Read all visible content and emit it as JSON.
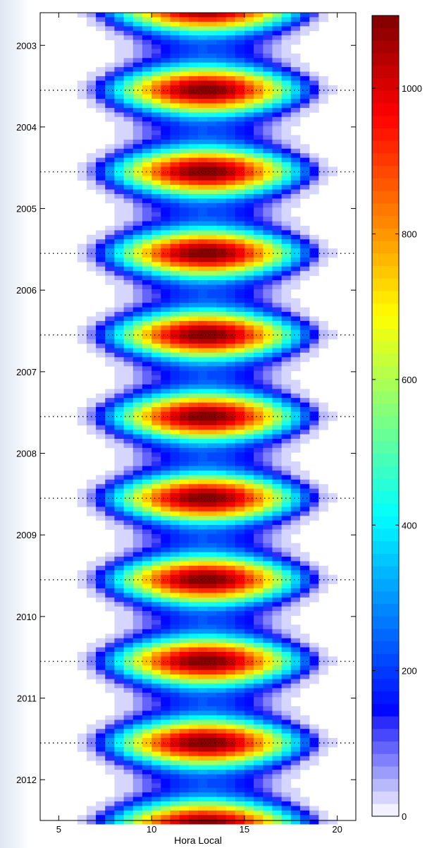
{
  "chart_data": {
    "type": "heatmap",
    "title": "",
    "xlabel": "Hora Local",
    "ylabel": "",
    "xlim": [
      4.0,
      21.0
    ],
    "ylim": [
      2002.6,
      2012.5
    ],
    "x_bin_hours": 0.5,
    "y_bins_per_year": 18,
    "x_ticks": [
      5,
      10,
      15,
      20
    ],
    "y_ticks": [
      2003,
      2004,
      2005,
      2006,
      2007,
      2008,
      2009,
      2010,
      2011,
      2012
    ],
    "y_reference_lines": [
      2003.55,
      2004.55,
      2005.55,
      2006.55,
      2007.55,
      2008.55,
      2009.55,
      2010.55,
      2011.55
    ],
    "value_model": {
      "description_of_shape": "seasonal diurnal cycle peaking near 12.9 h local time, maxima each mid-year",
      "peak_hour": 12.9,
      "peak_value": 1080,
      "winter_trough_value_fraction": 0.18,
      "daylight_half_width_summer_h": 6.7,
      "daylight_half_width_winter_h": 4.6
    },
    "colorbar": {
      "min": 0,
      "max": 1100,
      "ticks": [
        0,
        200,
        400,
        600,
        800,
        1000
      ],
      "levels": 64,
      "colormap": "jet-with-white-low"
    },
    "grid": false,
    "legend": "colorbar-right"
  }
}
